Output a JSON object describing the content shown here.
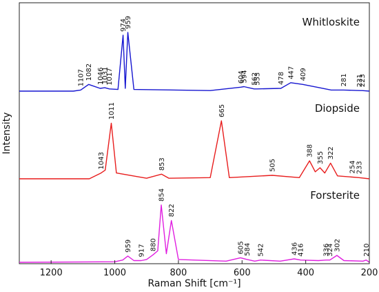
{
  "chart_data": {
    "type": "line",
    "title": "",
    "xlabel": "Raman Shift [cm⁻¹]",
    "ylabel": "Intensity",
    "xlim": [
      1300,
      200
    ],
    "x_reversed": true,
    "x_ticks": [
      1200,
      1000,
      800,
      600,
      400,
      200
    ],
    "y_ticks_shown": false,
    "grid": false,
    "legend": "none",
    "series": [
      {
        "name": "Whitloskite",
        "color": "#1515d0",
        "baseline": 0.0,
        "x": [
          1300,
          1130,
          1107,
          1082,
          1046,
          1031,
          1017,
          990,
          974,
          967,
          959,
          940,
          700,
          604,
          594,
          562,
          553,
          478,
          447,
          409,
          320,
          281,
          231,
          223,
          200
        ],
        "y": [
          0.0,
          0.0,
          0.02,
          0.12,
          0.05,
          0.06,
          0.04,
          0.03,
          1.0,
          0.05,
          1.05,
          0.03,
          0.01,
          0.07,
          0.08,
          0.04,
          0.04,
          0.05,
          0.15,
          0.12,
          0.02,
          0.02,
          0.01,
          0.01,
          0.0
        ],
        "peaks": [
          {
            "label": "1107",
            "x": 1107
          },
          {
            "label": "1082",
            "x": 1082
          },
          {
            "label": "1046",
            "x": 1046
          },
          {
            "label": "1031",
            "x": 1031
          },
          {
            "label": "1017",
            "x": 1017
          },
          {
            "label": "974",
            "x": 974
          },
          {
            "label": "959",
            "x": 959
          },
          {
            "label": "604",
            "x": 604
          },
          {
            "label": "594",
            "x": 594
          },
          {
            "label": "562",
            "x": 562
          },
          {
            "label": "553",
            "x": 553
          },
          {
            "label": "478",
            "x": 478
          },
          {
            "label": "447",
            "x": 447
          },
          {
            "label": "409",
            "x": 409
          },
          {
            "label": "281",
            "x": 281
          },
          {
            "label": "231",
            "x": 231
          },
          {
            "label": "223",
            "x": 223
          }
        ]
      },
      {
        "name": "Diopside",
        "color": "#e81c1c",
        "baseline": 0.0,
        "x": [
          1300,
          1080,
          1043,
          1030,
          1011,
          995,
          900,
          853,
          830,
          700,
          665,
          640,
          505,
          420,
          388,
          370,
          355,
          340,
          322,
          300,
          254,
          233,
          200
        ],
        "y": [
          0.0,
          0.0,
          0.1,
          0.15,
          0.96,
          0.1,
          0.01,
          0.08,
          0.01,
          0.02,
          1.0,
          0.02,
          0.06,
          0.02,
          0.31,
          0.12,
          0.19,
          0.1,
          0.27,
          0.05,
          0.03,
          0.02,
          0.0
        ],
        "peaks": [
          {
            "label": "1043",
            "x": 1043
          },
          {
            "label": "1011",
            "x": 1011
          },
          {
            "label": "853",
            "x": 853
          },
          {
            "label": "665",
            "x": 665
          },
          {
            "label": "505",
            "x": 505
          },
          {
            "label": "388",
            "x": 388
          },
          {
            "label": "355",
            "x": 355
          },
          {
            "label": "322",
            "x": 322
          },
          {
            "label": "254",
            "x": 254
          },
          {
            "label": "233",
            "x": 233
          }
        ]
      },
      {
        "name": "Forsterite",
        "color": "#e01ee0",
        "baseline": 0.0,
        "x": [
          1300,
          1000,
          975,
          959,
          940,
          917,
          900,
          880,
          865,
          854,
          838,
          822,
          800,
          650,
          605,
          584,
          560,
          542,
          480,
          436,
          416,
          360,
          336,
          324,
          302,
          280,
          220,
          210,
          200
        ],
        "y": [
          0.0,
          0.01,
          0.04,
          0.11,
          0.03,
          0.03,
          0.05,
          0.13,
          0.2,
          1.0,
          0.15,
          0.73,
          0.05,
          0.02,
          0.08,
          0.05,
          0.02,
          0.04,
          0.02,
          0.06,
          0.04,
          0.03,
          0.04,
          0.04,
          0.12,
          0.03,
          0.02,
          0.04,
          0.0
        ],
        "peaks": [
          {
            "label": "959",
            "x": 959
          },
          {
            "label": "917",
            "x": 917
          },
          {
            "label": "880",
            "x": 880
          },
          {
            "label": "854",
            "x": 854
          },
          {
            "label": "822",
            "x": 822
          },
          {
            "label": "605",
            "x": 605
          },
          {
            "label": "584",
            "x": 584
          },
          {
            "label": "542",
            "x": 542
          },
          {
            "label": "436",
            "x": 436
          },
          {
            "label": "416",
            "x": 416
          },
          {
            "label": "336",
            "x": 336
          },
          {
            "label": "324",
            "x": 324
          },
          {
            "label": "302",
            "x": 302
          },
          {
            "label": "210",
            "x": 210
          }
        ]
      }
    ]
  }
}
